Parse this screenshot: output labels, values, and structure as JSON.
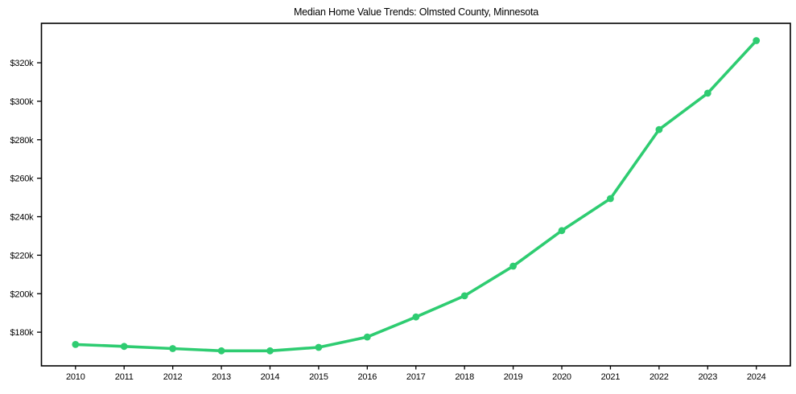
{
  "chart_data": {
    "type": "line",
    "title": "Median Home Value Trends: Olmsted County, Minnesota",
    "x": [
      2010,
      2011,
      2012,
      2013,
      2014,
      2015,
      2016,
      2017,
      2018,
      2019,
      2020,
      2021,
      2022,
      2023,
      2024
    ],
    "x_tick_labels": [
      "2010",
      "2011",
      "2012",
      "2013",
      "2014",
      "2015",
      "2016",
      "2017",
      "2018",
      "2019",
      "2020",
      "2021",
      "2022",
      "2023",
      "2024"
    ],
    "series": [
      {
        "name": "Median Home Value",
        "values": [
          173600,
          172600,
          171500,
          170300,
          170300,
          172100,
          177500,
          187900,
          198900,
          214300,
          232800,
          249400,
          285300,
          304200,
          331500
        ]
      }
    ],
    "xlabel": "",
    "ylabel": "",
    "y_ticks": [
      180000,
      200000,
      220000,
      240000,
      260000,
      280000,
      300000,
      320000
    ],
    "y_tick_labels": [
      "$180k",
      "$200k",
      "$220k",
      "$240k",
      "$260k",
      "$280k",
      "$300k",
      "$320k"
    ],
    "xlim": [
      2009.3,
      2024.7
    ],
    "ylim": [
      162500,
      340500
    ],
    "grid": false,
    "legend": "none",
    "line_color": "#2ecc71",
    "marker_color": "#2ecc71",
    "axis_color": "#000000",
    "tick_label_color": "#000000",
    "background_color": "#ffffff"
  }
}
